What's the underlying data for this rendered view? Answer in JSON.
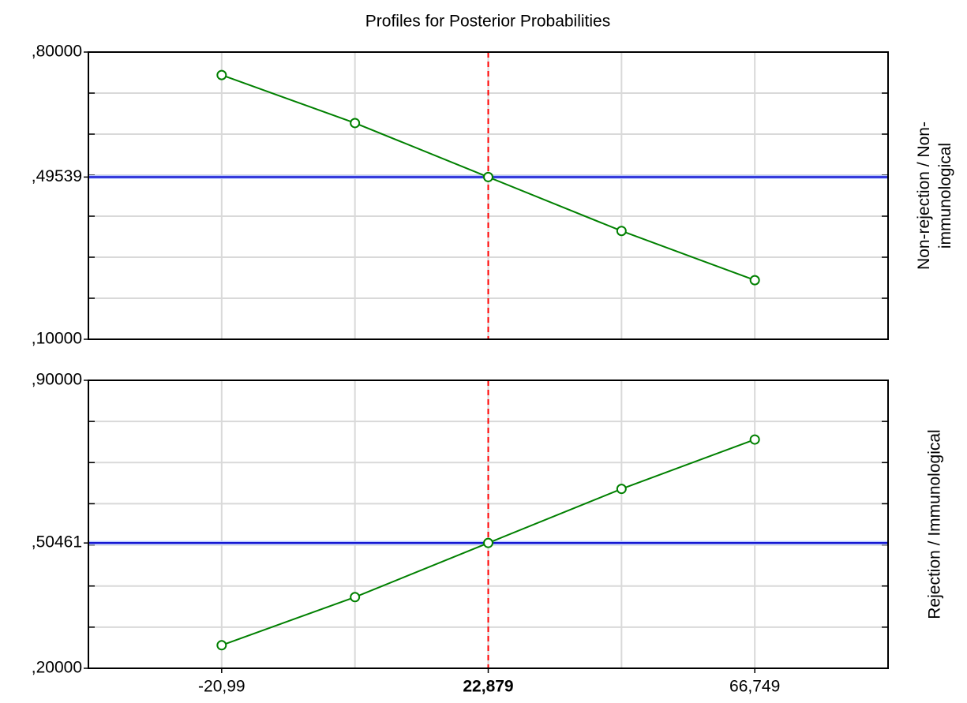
{
  "chart_data": [
    {
      "type": "line",
      "title": "Profiles for Posterior Probabilities",
      "side_label": [
        "Non-rejection / Non-",
        "immunological"
      ],
      "x": [
        -20.99,
        0.9445,
        22.879,
        44.814,
        66.749
      ],
      "series": [
        {
          "color": "#008000",
          "values": [
            0.744,
            0.627,
            0.49539,
            0.364,
            0.244
          ]
        }
      ],
      "xlim": [
        -42.924,
        88.684
      ],
      "ylim": [
        0.1,
        0.8
      ],
      "yticks": [
        {
          "value": 0.1,
          "label": ",10000"
        },
        {
          "value": 0.49539,
          "label": ",49539"
        },
        {
          "value": 0.8,
          "label": ",80000"
        }
      ],
      "minor_yticks": [
        0.2,
        0.3,
        0.4,
        0.5,
        0.6,
        0.7
      ],
      "reference_y": 0.49539,
      "reference_y_color": "#0000cc",
      "reference_x": 22.879,
      "reference_x_color": "#ff0000",
      "grid": true
    },
    {
      "type": "line",
      "side_label": [
        "Rejection / Immunological"
      ],
      "x": [
        -20.99,
        0.9445,
        22.879,
        44.814,
        66.749
      ],
      "series": [
        {
          "color": "#008000",
          "values": [
            0.256,
            0.373,
            0.50461,
            0.636,
            0.756
          ]
        }
      ],
      "xlim": [
        -42.924,
        88.684
      ],
      "xticks": [
        {
          "value": -20.99,
          "label": "-20,99"
        },
        {
          "value": 22.879,
          "label": "22,879"
        },
        {
          "value": 66.749,
          "label": "66,749"
        }
      ],
      "minor_xticks": [
        0.9445,
        44.814
      ],
      "bold_xtick_index": 1,
      "ylim": [
        0.2,
        0.9
      ],
      "yticks": [
        {
          "value": 0.2,
          "label": ",20000"
        },
        {
          "value": 0.50461,
          "label": ",50461"
        },
        {
          "value": 0.9,
          "label": ",90000"
        }
      ],
      "minor_yticks": [
        0.3,
        0.4,
        0.5,
        0.6,
        0.7,
        0.8
      ],
      "reference_y": 0.50461,
      "reference_y_color": "#0000cc",
      "reference_x": 22.879,
      "reference_x_color": "#ff0000",
      "grid": true
    }
  ]
}
